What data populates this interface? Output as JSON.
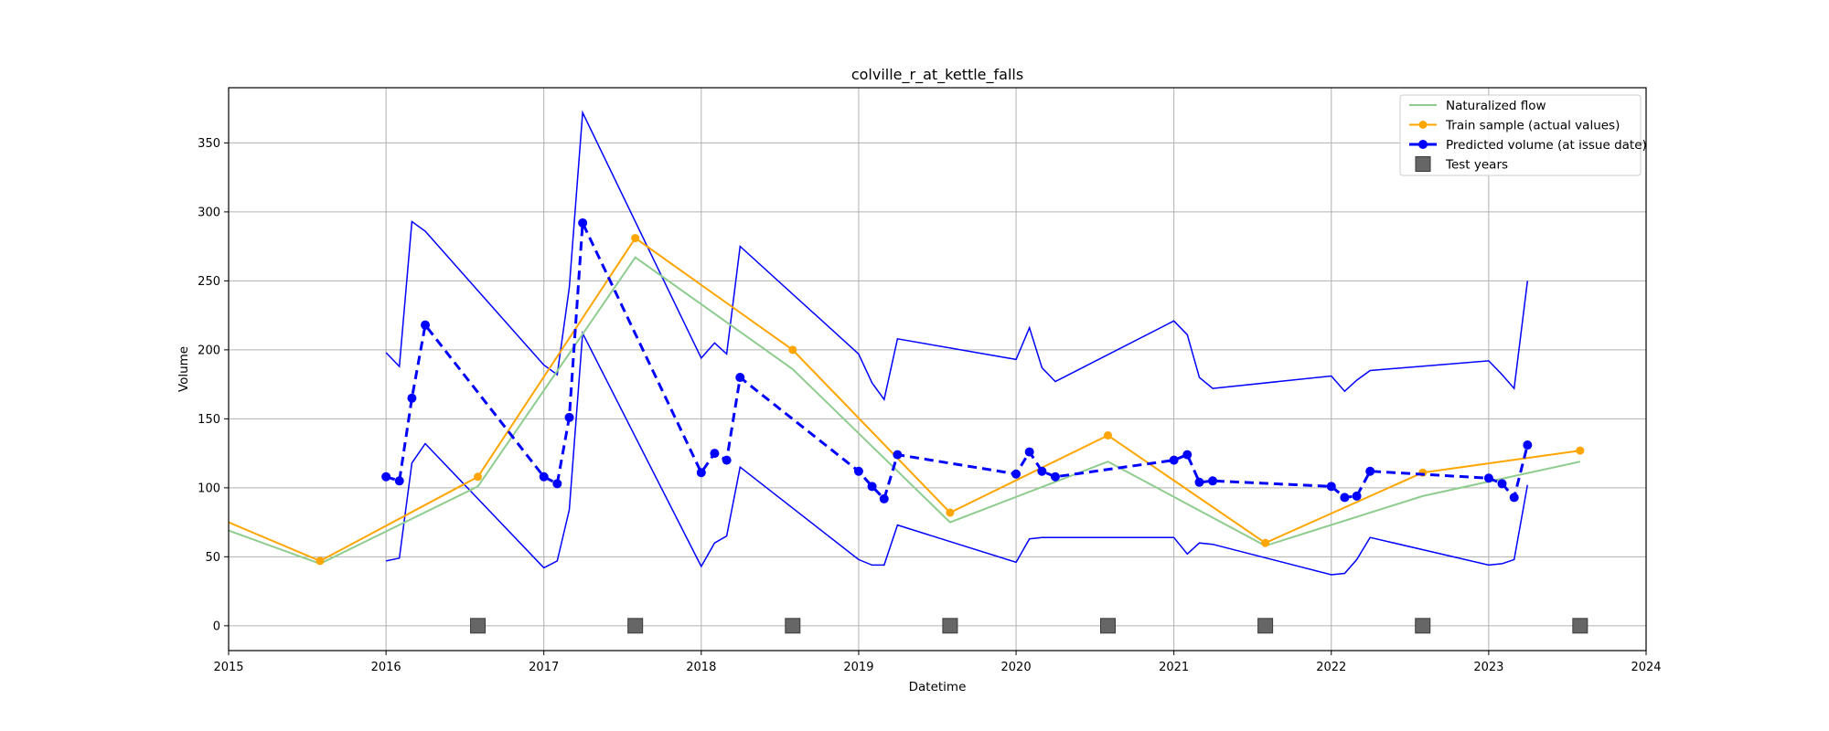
{
  "chart_data": {
    "type": "line",
    "title": "colville_r_at_kettle_falls",
    "xlabel": "Datetime",
    "ylabel": "Volume",
    "xlim": [
      "2015-01-01",
      "2024-01-01"
    ],
    "ylim": [
      -18,
      390
    ],
    "x_ticks": [
      "2015",
      "2016",
      "2017",
      "2018",
      "2019",
      "2020",
      "2021",
      "2022",
      "2023",
      "2024"
    ],
    "y_ticks": [
      0,
      50,
      100,
      150,
      200,
      250,
      300,
      350
    ],
    "grid": true,
    "legend_position": "top-right",
    "series": [
      {
        "name": "Naturalized flow",
        "style": "line",
        "color": "#8fcc8f",
        "x": [
          "2015-01-01",
          "2015-08-01",
          "2016-08-01",
          "2017-08-01",
          "2018-08-01",
          "2019-08-01",
          "2020-08-01",
          "2021-08-01",
          "2022-08-01",
          "2023-08-01"
        ],
        "y": [
          69,
          45,
          101,
          267,
          186,
          75,
          119,
          58,
          94,
          119
        ]
      },
      {
        "name": "Train sample (actual values)",
        "style": "line-marker",
        "color": "#ffa500",
        "x": [
          "2015-01-01",
          "2015-08-01",
          "2016-08-01",
          "2017-08-01",
          "2018-08-01",
          "2019-08-01",
          "2020-08-01",
          "2021-08-01",
          "2022-08-01",
          "2023-08-01"
        ],
        "y": [
          75,
          47,
          108,
          281,
          200,
          82,
          138,
          60,
          111,
          127
        ],
        "marker_from_index": 1
      },
      {
        "name": "Predicted volume (at issue date)",
        "style": "dashed-marker",
        "color": "#0000ff",
        "x": [
          "2016-01-01",
          "2016-02-01",
          "2016-03-01",
          "2016-04-01",
          "2017-01-01",
          "2017-02-01",
          "2017-03-01",
          "2017-04-01",
          "2018-01-01",
          "2018-02-01",
          "2018-03-01",
          "2018-04-01",
          "2019-01-01",
          "2019-02-01",
          "2019-03-01",
          "2019-04-01",
          "2020-01-01",
          "2020-02-01",
          "2020-03-01",
          "2020-04-01",
          "2021-01-01",
          "2021-02-01",
          "2021-03-01",
          "2021-04-01",
          "2022-01-01",
          "2022-02-01",
          "2022-03-01",
          "2022-04-01",
          "2023-01-01",
          "2023-02-01",
          "2023-03-01",
          "2023-04-01"
        ],
        "y": [
          108,
          105,
          165,
          218,
          108,
          103,
          151,
          292,
          111,
          125,
          120,
          180,
          112,
          101,
          92,
          124,
          110,
          126,
          112,
          108,
          120,
          124,
          104,
          105,
          101,
          93,
          94,
          112,
          107,
          103,
          93,
          131
        ]
      },
      {
        "name": "",
        "style": "band-upper",
        "color": "#0000ff",
        "x": [
          "2016-01-01",
          "2016-02-01",
          "2016-03-01",
          "2016-04-01",
          "2017-01-01",
          "2017-02-01",
          "2017-03-01",
          "2017-04-01",
          "2018-01-01",
          "2018-02-01",
          "2018-03-01",
          "2018-04-01",
          "2019-01-01",
          "2019-02-01",
          "2019-03-01",
          "2019-04-01",
          "2020-01-01",
          "2020-02-01",
          "2020-03-01",
          "2020-04-01",
          "2021-01-01",
          "2021-02-01",
          "2021-03-01",
          "2021-04-01",
          "2022-01-01",
          "2022-02-01",
          "2022-03-01",
          "2022-04-01",
          "2023-01-01",
          "2023-02-01",
          "2023-03-01",
          "2023-04-01"
        ],
        "y": [
          198,
          188,
          293,
          286,
          189,
          182,
          245,
          372,
          194,
          205,
          197,
          275,
          197,
          176,
          164,
          208,
          193,
          216,
          187,
          177,
          221,
          211,
          180,
          172,
          181,
          170,
          178,
          185,
          192,
          182,
          172,
          250
        ]
      },
      {
        "name": "",
        "style": "band-lower",
        "color": "#0000ff",
        "x": [
          "2016-01-01",
          "2016-02-01",
          "2016-03-01",
          "2016-04-01",
          "2017-01-01",
          "2017-02-01",
          "2017-03-01",
          "2017-04-01",
          "2018-01-01",
          "2018-02-01",
          "2018-03-01",
          "2018-04-01",
          "2019-01-01",
          "2019-02-01",
          "2019-03-01",
          "2019-04-01",
          "2020-01-01",
          "2020-02-01",
          "2020-03-01",
          "2020-04-01",
          "2021-01-01",
          "2021-02-01",
          "2021-03-01",
          "2021-04-01",
          "2022-01-01",
          "2022-02-01",
          "2022-03-01",
          "2022-04-01",
          "2023-01-01",
          "2023-02-01",
          "2023-03-01",
          "2023-04-01"
        ],
        "y": [
          47,
          49,
          118,
          132,
          42,
          47,
          84,
          212,
          43,
          60,
          65,
          115,
          48,
          44,
          44,
          73,
          46,
          63,
          64,
          64,
          64,
          52,
          60,
          59,
          37,
          38,
          48,
          64,
          44,
          45,
          48,
          102
        ]
      },
      {
        "name": "Test years",
        "style": "square-marker",
        "color": "#666666",
        "x": [
          "2016-08-01",
          "2017-08-01",
          "2018-08-01",
          "2019-08-01",
          "2020-08-01",
          "2021-08-01",
          "2022-08-01",
          "2023-08-01"
        ],
        "y": [
          0,
          0,
          0,
          0,
          0,
          0,
          0,
          0
        ]
      }
    ]
  }
}
